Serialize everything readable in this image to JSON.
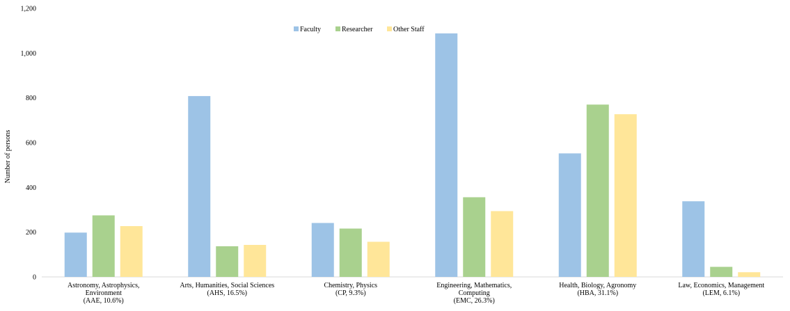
{
  "chart_data": {
    "type": "bar",
    "title": "",
    "xlabel": "",
    "ylabel": "Number of persons",
    "ylim": [
      0,
      1200
    ],
    "yticks": [
      "0",
      "200",
      "400",
      "600",
      "800",
      "1,000",
      "1,200"
    ],
    "grid": false,
    "legend_position": "top-center",
    "categories": [
      [
        "Astronomy, Astrophysics,",
        "Environment",
        "(AAE, 10.6%)"
      ],
      [
        "Arts, Humanities, Social Sciences",
        "(AHS, 16.5%)"
      ],
      [
        "Chemistry, Physics",
        "(CP, 9.3%)"
      ],
      [
        "Engineering, Mathematics,",
        "Computing",
        "(EMC, 26.3%)"
      ],
      [
        "Health, Biology, Agronomy",
        "(HBA, 31.1%)"
      ],
      [
        "Law, Economics, Management",
        "(LEM, 6.1%)"
      ]
    ],
    "series": [
      {
        "name": "Faculty",
        "color": "#9dc3e6",
        "values": [
          198,
          808,
          241,
          1088,
          552,
          338
        ]
      },
      {
        "name": "Researcher",
        "color": "#a9d18e",
        "values": [
          275,
          137,
          216,
          356,
          770,
          45
        ]
      },
      {
        "name": "Other Staff",
        "color": "#ffe699",
        "values": [
          227,
          143,
          157,
          294,
          727,
          21
        ]
      }
    ]
  }
}
